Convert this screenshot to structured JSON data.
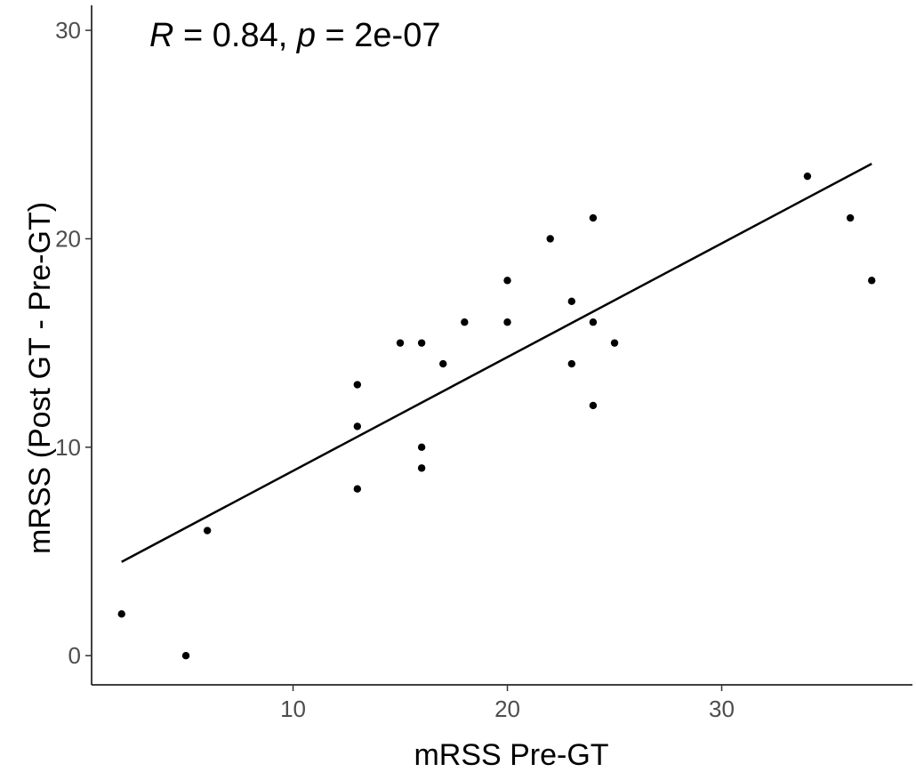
{
  "chart_data": {
    "type": "scatter",
    "xlabel": "mRSS Pre-GT",
    "ylabel": "mRSS (Post GT - Pre-GT)",
    "xlim": [
      0.6,
      38.9
    ],
    "ylim": [
      -1.4,
      31.2
    ],
    "xticks": [
      10,
      20,
      30
    ],
    "yticks": [
      0,
      10,
      20,
      30
    ],
    "grid": false,
    "annotation": {
      "r_symbol": "R",
      "r_text": " = 0.84, ",
      "p_symbol": "p",
      "p_text": " = 2e-07"
    },
    "points": [
      {
        "x": 2,
        "y": 2
      },
      {
        "x": 5,
        "y": 0
      },
      {
        "x": 6,
        "y": 6
      },
      {
        "x": 13,
        "y": 13
      },
      {
        "x": 13,
        "y": 11
      },
      {
        "x": 13,
        "y": 8
      },
      {
        "x": 15,
        "y": 15
      },
      {
        "x": 16,
        "y": 15
      },
      {
        "x": 16,
        "y": 10
      },
      {
        "x": 16,
        "y": 9
      },
      {
        "x": 17,
        "y": 14
      },
      {
        "x": 18,
        "y": 16
      },
      {
        "x": 20,
        "y": 18
      },
      {
        "x": 20,
        "y": 16
      },
      {
        "x": 22,
        "y": 20
      },
      {
        "x": 23,
        "y": 17
      },
      {
        "x": 23,
        "y": 14
      },
      {
        "x": 24,
        "y": 21
      },
      {
        "x": 24,
        "y": 16
      },
      {
        "x": 24,
        "y": 12
      },
      {
        "x": 25,
        "y": 15
      },
      {
        "x": 34,
        "y": 23
      },
      {
        "x": 36,
        "y": 21
      },
      {
        "x": 37,
        "y": 18
      }
    ],
    "fit_line": {
      "x": [
        2,
        37
      ],
      "y": [
        4.5,
        23.6
      ]
    }
  }
}
